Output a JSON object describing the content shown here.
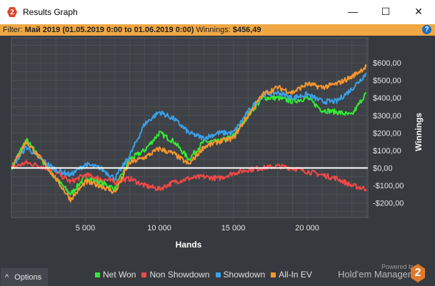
{
  "window": {
    "title": "Results Graph",
    "minimize": "—",
    "maximize": "☐",
    "close": "✕",
    "app_icon": "2"
  },
  "filter": {
    "label": "Filter:",
    "value": "Май 2019 (01.05.2019 0:00 to 01.06.2019 0:00)",
    "winnings_label": "Winnings:",
    "winnings_value": "$456,49",
    "help": "?"
  },
  "options": {
    "label": "Options",
    "icon": "^"
  },
  "branding": {
    "powered": "Powered by",
    "name": "Hold'em Manager",
    "logo": "2"
  },
  "chart_data": {
    "type": "line",
    "xlabel": "Hands",
    "ylabel": "Winnings",
    "xlim": [
      0,
      24100
    ],
    "ylim": [
      -283,
      743
    ],
    "x_ticks": [
      5000,
      10000,
      15000,
      20000
    ],
    "x_tick_labels": [
      "5 000",
      "10 000",
      "15 000",
      "20 000"
    ],
    "y_ticks": [
      600,
      500,
      400,
      300,
      200,
      100,
      0,
      -100,
      -200
    ],
    "y_tick_labels": [
      "$600,00",
      "$500,00",
      "$400,00",
      "$300,00",
      "$200,00",
      "$100,00",
      "$0,00",
      "-$100,00",
      "-$200,00"
    ],
    "grid": true,
    "legend_position": "bottom",
    "x": [
      0,
      1000,
      2000,
      3000,
      4000,
      5000,
      6000,
      7000,
      8000,
      9000,
      10000,
      11000,
      12000,
      13000,
      14000,
      15000,
      16000,
      17000,
      18000,
      19000,
      20000,
      21000,
      22000,
      23000,
      24000
    ],
    "series": [
      {
        "name": "Net Won",
        "color": "#33e833",
        "values": [
          0,
          160,
          50,
          -60,
          -150,
          -50,
          -80,
          -120,
          50,
          100,
          200,
          150,
          50,
          150,
          150,
          180,
          300,
          400,
          400,
          380,
          400,
          330,
          320,
          300,
          430
        ]
      },
      {
        "name": "Non Showdown",
        "color": "#f04848",
        "values": [
          0,
          30,
          10,
          -20,
          -80,
          -40,
          -60,
          -80,
          -60,
          -100,
          -120,
          -80,
          -60,
          -50,
          -60,
          -30,
          -10,
          0,
          10,
          0,
          -20,
          -40,
          -60,
          -100,
          -120
        ]
      },
      {
        "name": "Showdown",
        "color": "#3aa0e8",
        "values": [
          0,
          120,
          50,
          -10,
          -40,
          20,
          0,
          -60,
          70,
          250,
          320,
          280,
          200,
          170,
          200,
          200,
          320,
          420,
          430,
          400,
          420,
          380,
          380,
          450,
          540
        ]
      },
      {
        "name": "All-In EV",
        "color": "#f7952e",
        "values": [
          0,
          150,
          50,
          -60,
          -180,
          -80,
          -100,
          -140,
          30,
          60,
          110,
          80,
          20,
          120,
          150,
          170,
          300,
          420,
          460,
          430,
          480,
          460,
          480,
          520,
          580
        ]
      }
    ]
  }
}
